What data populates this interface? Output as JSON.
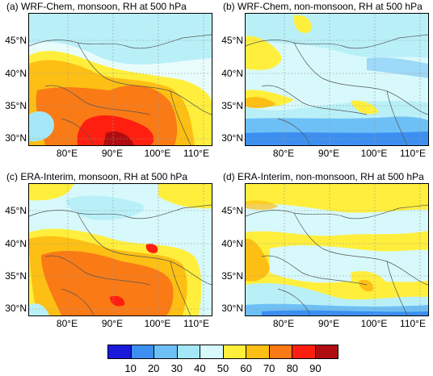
{
  "panels": [
    {
      "title": "(a) WRF-Chem, monsoon, RH at 500 hPa"
    },
    {
      "title": "(b) WRF-Chem, non-monsoon, RH at 500 hPa"
    },
    {
      "title": "(c) ERA-Interim, monsoon, RH at 500 hPa"
    },
    {
      "title": "(d) ERA-Interim, non-monsoon, RH at 500 hPa"
    }
  ],
  "lat_labels": [
    "45°N",
    "40°N",
    "35°N",
    "30°N"
  ],
  "lon_labels": [
    "80°E",
    "90°E",
    "100°E",
    "110°E"
  ],
  "colorbar": {
    "colors": [
      "#1a1adb",
      "#3c8ff0",
      "#6dc0f6",
      "#a4e8f7",
      "#d7f9fb",
      "#ffef3c",
      "#fdbf13",
      "#fa7a16",
      "#ff1f10",
      "#b00d10"
    ],
    "labels": [
      "10",
      "20",
      "30",
      "40",
      "50",
      "60",
      "70",
      "80",
      "90"
    ]
  }
}
